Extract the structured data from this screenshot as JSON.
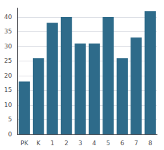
{
  "chart_data": {
    "type": "bar",
    "categories": [
      "PK",
      "K",
      "1",
      "2",
      "3",
      "4",
      "5",
      "6",
      "7",
      "8"
    ],
    "values": [
      18,
      26,
      38,
      40,
      31,
      31,
      40,
      26,
      33,
      42
    ],
    "color": "#2e6b8a",
    "ylim": [
      0,
      43
    ],
    "yticks": [
      0,
      5,
      10,
      15,
      20,
      25,
      30,
      35,
      40
    ],
    "grid": true
  }
}
